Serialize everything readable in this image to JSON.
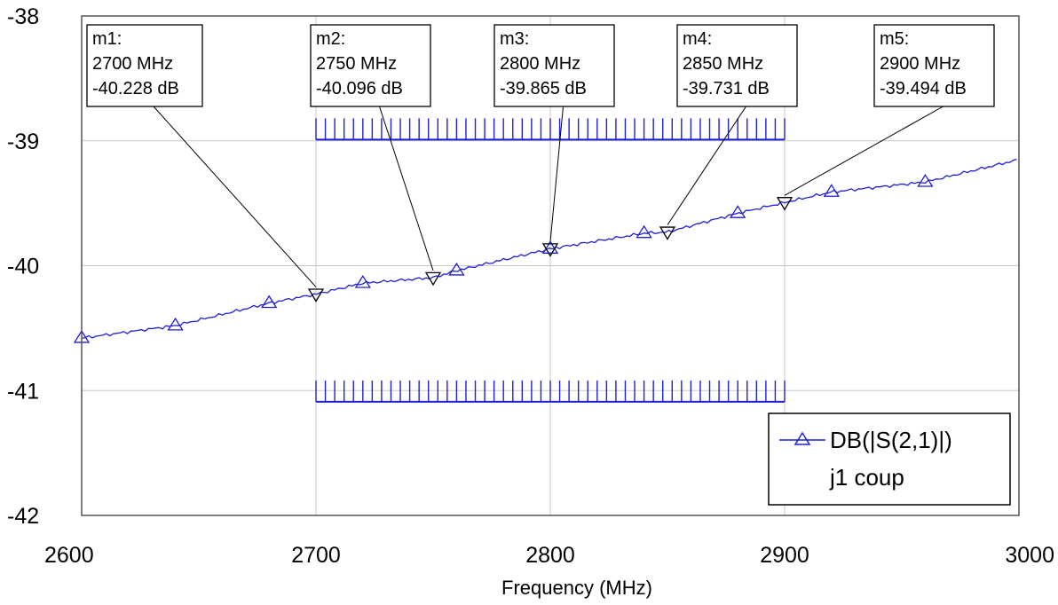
{
  "chart_data": {
    "type": "line",
    "xlabel": "Frequency (MHz)",
    "ylabel": "",
    "xlim": [
      2600,
      3000
    ],
    "ylim": [
      -42,
      -38
    ],
    "x_ticks": [
      "2600",
      "2700",
      "2800",
      "2900",
      "3000"
    ],
    "y_ticks": [
      "-38",
      "-39",
      "-40",
      "-41",
      "-42"
    ],
    "grid": true,
    "legend_position": "bottom-right",
    "colors": {
      "series": "#1f1fd6",
      "grid": "#c8c8c8",
      "limit": "#1f1fd6",
      "marker_label": "#000000"
    },
    "series": [
      {
        "name": "DB(|S(2,1)|)",
        "subtitle": "j1 coup",
        "x": [
          2600,
          2640,
          2680,
          2700,
          2720,
          2750,
          2760,
          2800,
          2840,
          2850,
          2880,
          2900,
          2920,
          2960,
          3000
        ],
        "y": [
          -40.58,
          -40.48,
          -40.3,
          -40.228,
          -40.14,
          -40.096,
          -40.04,
          -39.865,
          -39.74,
          -39.731,
          -39.58,
          -39.494,
          -39.41,
          -39.33,
          -39.15
        ],
        "symbol_x": [
          2600,
          2640,
          2680,
          2720,
          2760,
          2800,
          2840,
          2880,
          2920,
          2960
        ]
      }
    ],
    "limit_lines": [
      {
        "y": -38.99,
        "x_start": 2700,
        "x_end": 2900
      },
      {
        "y": -41.09,
        "x_start": 2700,
        "x_end": 2900
      }
    ],
    "markers": [
      {
        "name": "m1:",
        "freq": "2700 MHz",
        "value": "-40.228 dB",
        "x": 2700,
        "y": -40.228
      },
      {
        "name": "m2:",
        "freq": "2750 MHz",
        "value": "-40.096 dB",
        "x": 2750,
        "y": -40.096
      },
      {
        "name": "m3:",
        "freq": "2800 MHz",
        "value": "-39.865 dB",
        "x": 2800,
        "y": -39.865
      },
      {
        "name": "m4:",
        "freq": "2850 MHz",
        "value": "-39.731 dB",
        "x": 2850,
        "y": -39.731
      },
      {
        "name": "m5:",
        "freq": "2900 MHz",
        "value": "-39.494 dB",
        "x": 2900,
        "y": -39.494
      }
    ]
  }
}
